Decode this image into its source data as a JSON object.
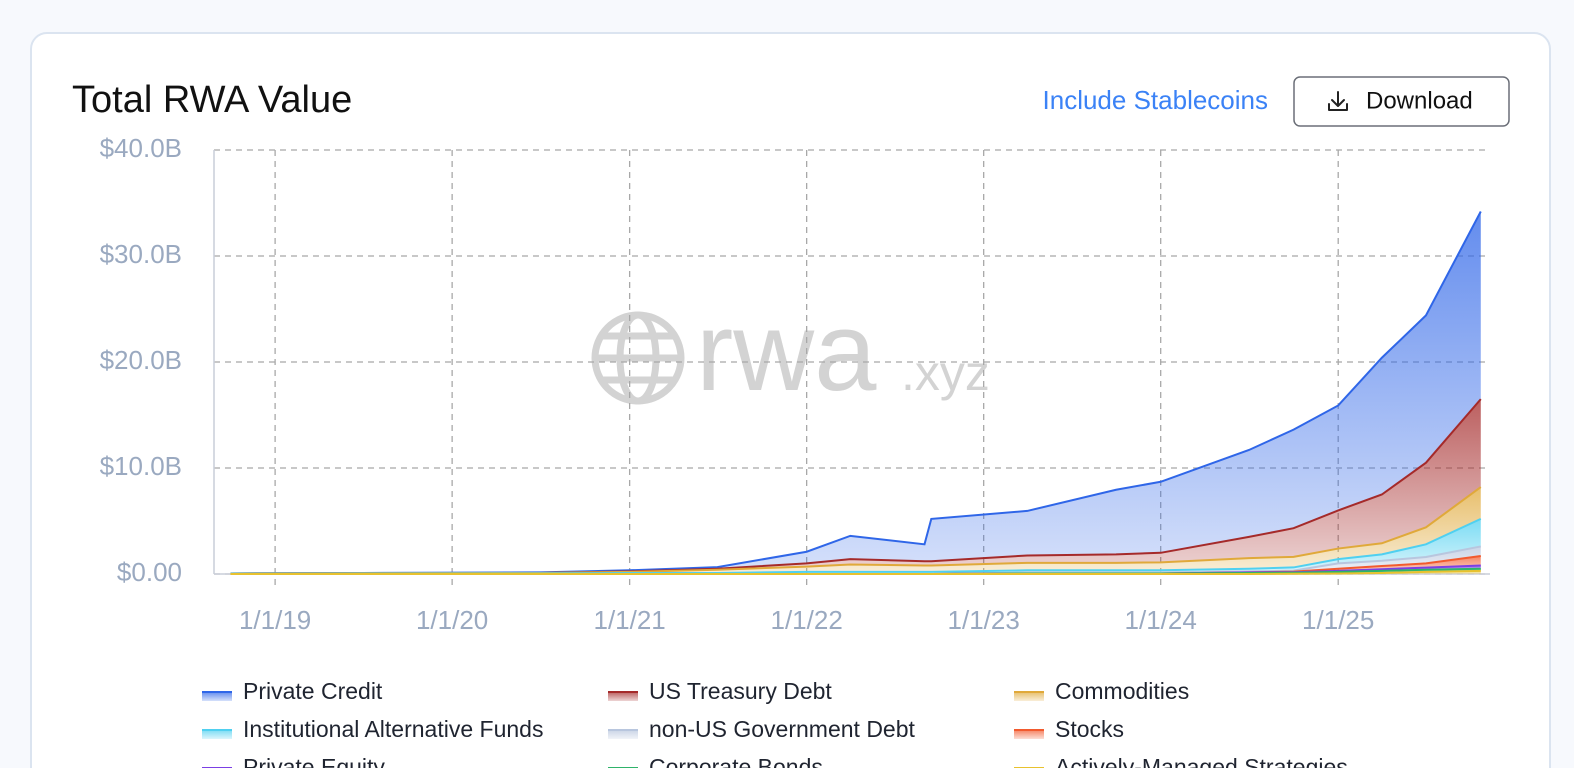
{
  "header": {
    "title": "Total RWA Value",
    "toggle": "Include Stablecoins",
    "download": "Download"
  },
  "watermark": {
    "name": "rwa",
    "suffix": ".xyz"
  },
  "chart_data": {
    "type": "stacked-area",
    "x": [
      "2018-10-01",
      "2019-07-01",
      "2020-07-01",
      "2021-01-01",
      "2021-07-01",
      "2022-01-01",
      "2022-04-01",
      "2022-09-01",
      "2022-09-15",
      "2023-04-01",
      "2023-10-01",
      "2024-01-01",
      "2024-07-01",
      "2024-10-01",
      "2025-01-01",
      "2025-04-01",
      "2025-07-01",
      "2025-10-22"
    ],
    "xlim": [
      "2018-08-28",
      "2025-11-10"
    ],
    "xticks": [
      {
        "value": "2019-01-01",
        "label": "1/1/19"
      },
      {
        "value": "2020-01-01",
        "label": "1/1/20"
      },
      {
        "value": "2021-01-01",
        "label": "1/1/21"
      },
      {
        "value": "2022-01-01",
        "label": "1/1/22"
      },
      {
        "value": "2023-01-01",
        "label": "1/1/23"
      },
      {
        "value": "2024-01-01",
        "label": "1/1/24"
      },
      {
        "value": "2025-01-01",
        "label": "1/1/25"
      }
    ],
    "ylim": [
      0,
      40
    ],
    "yticks": [
      {
        "value": 0,
        "label": "$0.00"
      },
      {
        "value": 10,
        "label": "$10.0B"
      },
      {
        "value": 20,
        "label": "$20.0B"
      },
      {
        "value": 30,
        "label": "$30.0B"
      },
      {
        "value": 40,
        "label": "$40.0B"
      }
    ],
    "grid": true,
    "series": [
      {
        "name": "Private Credit",
        "color": "#2f66e8",
        "values": [
          0.01,
          0.02,
          0.05,
          0.1,
          0.15,
          1.1,
          2.2,
          1.6,
          4.0,
          4.2,
          6.1,
          6.7,
          8.2,
          9.3,
          9.9,
          12.9,
          13.9,
          17.7
        ]
      },
      {
        "name": "US Treasury Debt",
        "color": "#a52a2a",
        "values": [
          0,
          0,
          0,
          0.05,
          0.1,
          0.3,
          0.5,
          0.4,
          0.4,
          0.7,
          0.8,
          0.9,
          2.0,
          2.7,
          3.6,
          4.6,
          6.1,
          8.3
        ]
      },
      {
        "name": "Commodities",
        "color": "#e0a93a",
        "values": [
          0.02,
          0.03,
          0.05,
          0.1,
          0.3,
          0.5,
          0.7,
          0.6,
          0.6,
          0.7,
          0.7,
          0.75,
          1.0,
          1.0,
          1.0,
          1.05,
          1.6,
          3.0
        ]
      },
      {
        "name": "Institutional Alternative Funds",
        "color": "#4fd0f0",
        "values": [
          0.03,
          0.05,
          0.05,
          0.1,
          0.1,
          0.2,
          0.2,
          0.2,
          0.2,
          0.2,
          0.2,
          0.2,
          0.25,
          0.3,
          0.4,
          0.6,
          1.2,
          2.6
        ]
      },
      {
        "name": "non-US Government Debt",
        "color": "#b8c6de",
        "values": [
          0,
          0,
          0,
          0,
          0,
          0,
          0,
          0,
          0,
          0.1,
          0.1,
          0.1,
          0.1,
          0.1,
          0.5,
          0.5,
          0.6,
          0.9
        ]
      },
      {
        "name": "Stocks",
        "color": "#f25a2e",
        "values": [
          0,
          0,
          0,
          0,
          0,
          0,
          0,
          0,
          0,
          0,
          0,
          0,
          0,
          0.05,
          0.2,
          0.3,
          0.4,
          0.9
        ]
      },
      {
        "name": "Private Equity",
        "color": "#7b3fe4",
        "values": [
          0,
          0,
          0,
          0,
          0,
          0,
          0,
          0,
          0,
          0,
          0,
          0,
          0.05,
          0.05,
          0.1,
          0.15,
          0.2,
          0.3
        ]
      },
      {
        "name": "Corporate Bonds",
        "color": "#2fb36a",
        "values": [
          0,
          0,
          0,
          0,
          0,
          0,
          0,
          0,
          0,
          0.05,
          0.05,
          0.05,
          0.1,
          0.1,
          0.15,
          0.2,
          0.2,
          0.2
        ]
      },
      {
        "name": "Actively-Managed Strategies",
        "color": "#e8c22e",
        "values": [
          0,
          0,
          0,
          0,
          0,
          0,
          0,
          0,
          0,
          0,
          0,
          0,
          0,
          0.02,
          0.05,
          0.1,
          0.2,
          0.3
        ]
      }
    ]
  }
}
